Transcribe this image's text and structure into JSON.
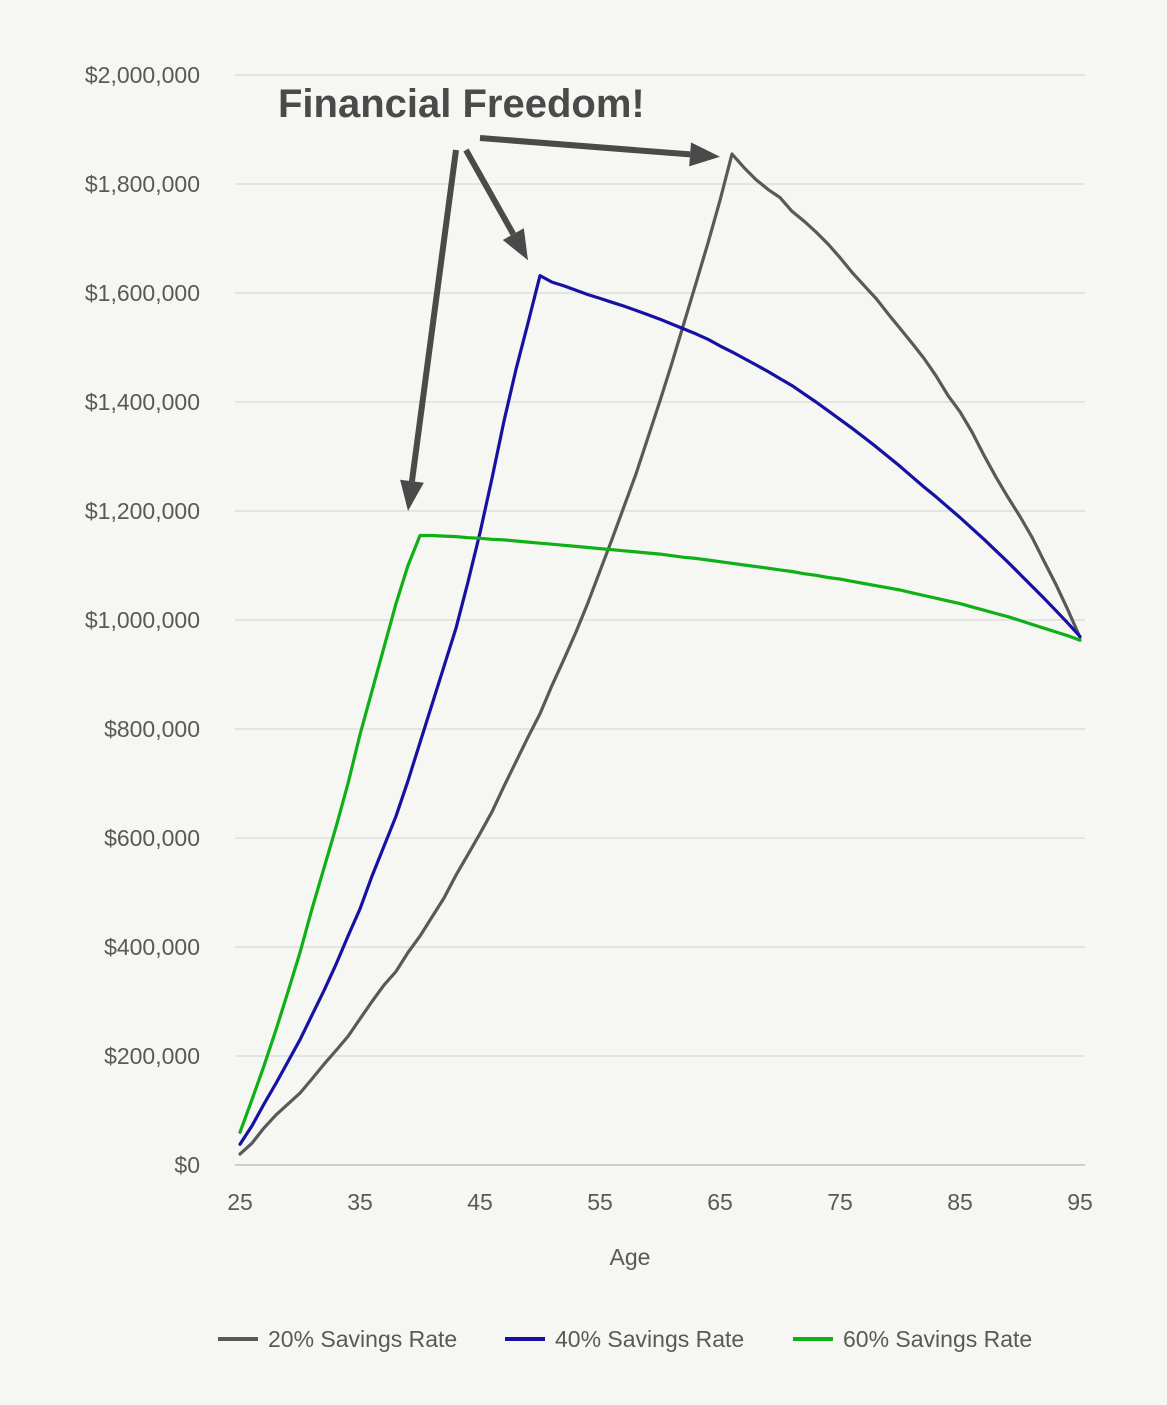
{
  "chart_data": {
    "type": "line",
    "title": "",
    "xlabel": "Age",
    "ylabel": "",
    "xlim": [
      25,
      95
    ],
    "ylim": [
      0,
      2000000
    ],
    "x_ticks": [
      25,
      35,
      45,
      55,
      65,
      75,
      85,
      95
    ],
    "x_tick_labels": [
      "25",
      "35",
      "45",
      "55",
      "65",
      "75",
      "85",
      "95"
    ],
    "y_ticks": [
      0,
      200000,
      400000,
      600000,
      800000,
      1000000,
      1200000,
      1400000,
      1600000,
      1800000,
      2000000
    ],
    "y_tick_labels": [
      "$0",
      "$200,000",
      "$400,000",
      "$600,000",
      "$800,000",
      "$1,000,000",
      "$1,200,000",
      "$1,400,000",
      "$1,600,000",
      "$1,800,000",
      "$2,000,000"
    ],
    "grid": "horizontal",
    "legend_position": "bottom",
    "annotation": {
      "text": "Financial Freedom!",
      "targets": [
        {
          "x": 39,
          "y": 1200000
        },
        {
          "x": 49,
          "y": 1660000
        },
        {
          "x": 65,
          "y": 1850000
        }
      ]
    },
    "series": [
      {
        "name": "20% Savings Rate",
        "color": "#595959",
        "points": [
          [
            25,
            20000
          ],
          [
            26,
            40000
          ],
          [
            27,
            68000
          ],
          [
            28,
            92000
          ],
          [
            29,
            112000
          ],
          [
            30,
            132000
          ],
          [
            31,
            158000
          ],
          [
            32,
            185000
          ],
          [
            33,
            210000
          ],
          [
            34,
            236000
          ],
          [
            35,
            268000
          ],
          [
            36,
            300000
          ],
          [
            37,
            330000
          ],
          [
            38,
            355000
          ],
          [
            39,
            390000
          ],
          [
            40,
            420000
          ],
          [
            41,
            455000
          ],
          [
            42,
            490000
          ],
          [
            43,
            532000
          ],
          [
            44,
            570000
          ],
          [
            45,
            608000
          ],
          [
            46,
            648000
          ],
          [
            47,
            695000
          ],
          [
            48,
            740000
          ],
          [
            49,
            785000
          ],
          [
            50,
            828000
          ],
          [
            51,
            880000
          ],
          [
            52,
            928000
          ],
          [
            53,
            978000
          ],
          [
            54,
            1032000
          ],
          [
            55,
            1090000
          ],
          [
            56,
            1148000
          ],
          [
            57,
            1208000
          ],
          [
            58,
            1268000
          ],
          [
            59,
            1335000
          ],
          [
            60,
            1402000
          ],
          [
            61,
            1472000
          ],
          [
            62,
            1545000
          ],
          [
            63,
            1618000
          ],
          [
            64,
            1692000
          ],
          [
            65,
            1770000
          ],
          [
            66,
            1855000
          ],
          [
            67,
            1830000
          ],
          [
            68,
            1808000
          ],
          [
            69,
            1790000
          ],
          [
            70,
            1775000
          ],
          [
            71,
            1750000
          ],
          [
            72,
            1732000
          ],
          [
            73,
            1712000
          ],
          [
            74,
            1690000
          ],
          [
            75,
            1665000
          ],
          [
            76,
            1638000
          ],
          [
            77,
            1614000
          ],
          [
            78,
            1590000
          ],
          [
            79,
            1562000
          ],
          [
            80,
            1535000
          ],
          [
            81,
            1508000
          ],
          [
            82,
            1480000
          ],
          [
            83,
            1448000
          ],
          [
            84,
            1412000
          ],
          [
            85,
            1382000
          ],
          [
            86,
            1345000
          ],
          [
            87,
            1302000
          ],
          [
            88,
            1262000
          ],
          [
            89,
            1225000
          ],
          [
            90,
            1190000
          ],
          [
            91,
            1152000
          ],
          [
            92,
            1108000
          ],
          [
            93,
            1065000
          ],
          [
            94,
            1018000
          ],
          [
            95,
            968000
          ]
        ]
      },
      {
        "name": "40% Savings Rate",
        "color": "#1512a3",
        "points": [
          [
            25,
            38000
          ],
          [
            26,
            72000
          ],
          [
            27,
            112000
          ],
          [
            28,
            150000
          ],
          [
            29,
            190000
          ],
          [
            30,
            230000
          ],
          [
            31,
            275000
          ],
          [
            32,
            320000
          ],
          [
            33,
            368000
          ],
          [
            34,
            420000
          ],
          [
            35,
            470000
          ],
          [
            36,
            530000
          ],
          [
            37,
            585000
          ],
          [
            38,
            640000
          ],
          [
            39,
            705000
          ],
          [
            40,
            775000
          ],
          [
            41,
            845000
          ],
          [
            42,
            915000
          ],
          [
            43,
            985000
          ],
          [
            44,
            1070000
          ],
          [
            45,
            1160000
          ],
          [
            46,
            1260000
          ],
          [
            47,
            1365000
          ],
          [
            48,
            1460000
          ],
          [
            49,
            1545000
          ],
          [
            50,
            1632000
          ],
          [
            51,
            1620000
          ],
          [
            52,
            1613000
          ],
          [
            53,
            1605000
          ],
          [
            54,
            1597000
          ],
          [
            55,
            1590000
          ],
          [
            56,
            1583000
          ],
          [
            57,
            1576000
          ],
          [
            58,
            1568000
          ],
          [
            59,
            1560000
          ],
          [
            60,
            1552000
          ],
          [
            61,
            1543000
          ],
          [
            62,
            1534000
          ],
          [
            63,
            1525000
          ],
          [
            64,
            1515000
          ],
          [
            65,
            1503000
          ],
          [
            66,
            1492000
          ],
          [
            67,
            1480000
          ],
          [
            68,
            1468000
          ],
          [
            69,
            1456000
          ],
          [
            70,
            1443000
          ],
          [
            71,
            1430000
          ],
          [
            72,
            1415000
          ],
          [
            73,
            1400000
          ],
          [
            74,
            1384000
          ],
          [
            75,
            1368000
          ],
          [
            76,
            1352000
          ],
          [
            77,
            1335000
          ],
          [
            78,
            1318000
          ],
          [
            79,
            1300000
          ],
          [
            80,
            1282000
          ],
          [
            81,
            1263000
          ],
          [
            82,
            1244000
          ],
          [
            83,
            1226000
          ],
          [
            84,
            1207000
          ],
          [
            85,
            1188000
          ],
          [
            86,
            1168000
          ],
          [
            87,
            1148000
          ],
          [
            88,
            1127000
          ],
          [
            89,
            1106000
          ],
          [
            90,
            1084000
          ],
          [
            91,
            1062000
          ],
          [
            92,
            1040000
          ],
          [
            93,
            1017000
          ],
          [
            94,
            994000
          ],
          [
            95,
            970000
          ]
        ]
      },
      {
        "name": "60% Savings Rate",
        "color": "#0faf16",
        "points": [
          [
            25,
            60000
          ],
          [
            26,
            120000
          ],
          [
            27,
            182000
          ],
          [
            28,
            248000
          ],
          [
            29,
            318000
          ],
          [
            30,
            390000
          ],
          [
            31,
            470000
          ],
          [
            32,
            545000
          ],
          [
            33,
            620000
          ],
          [
            34,
            700000
          ],
          [
            35,
            790000
          ],
          [
            36,
            870000
          ],
          [
            37,
            950000
          ],
          [
            38,
            1030000
          ],
          [
            39,
            1100000
          ],
          [
            40,
            1155000
          ],
          [
            41,
            1155000
          ],
          [
            42,
            1154000
          ],
          [
            43,
            1153000
          ],
          [
            44,
            1151000
          ],
          [
            45,
            1150000
          ],
          [
            46,
            1148000
          ],
          [
            47,
            1147000
          ],
          [
            48,
            1145000
          ],
          [
            49,
            1143000
          ],
          [
            50,
            1141000
          ],
          [
            51,
            1139000
          ],
          [
            52,
            1137000
          ],
          [
            53,
            1135000
          ],
          [
            54,
            1133000
          ],
          [
            55,
            1131000
          ],
          [
            56,
            1129000
          ],
          [
            57,
            1127000
          ],
          [
            58,
            1125000
          ],
          [
            59,
            1123000
          ],
          [
            60,
            1121000
          ],
          [
            61,
            1118000
          ],
          [
            62,
            1115000
          ],
          [
            63,
            1113000
          ],
          [
            64,
            1110000
          ],
          [
            65,
            1107000
          ],
          [
            66,
            1104000
          ],
          [
            67,
            1101000
          ],
          [
            68,
            1098000
          ],
          [
            69,
            1095000
          ],
          [
            70,
            1092000
          ],
          [
            71,
            1089000
          ],
          [
            72,
            1085000
          ],
          [
            73,
            1082000
          ],
          [
            74,
            1078000
          ],
          [
            75,
            1075000
          ],
          [
            76,
            1071000
          ],
          [
            77,
            1067000
          ],
          [
            78,
            1063000
          ],
          [
            79,
            1059000
          ],
          [
            80,
            1055000
          ],
          [
            81,
            1050000
          ],
          [
            82,
            1045000
          ],
          [
            83,
            1040000
          ],
          [
            84,
            1035000
          ],
          [
            85,
            1030000
          ],
          [
            86,
            1024000
          ],
          [
            87,
            1018000
          ],
          [
            88,
            1012000
          ],
          [
            89,
            1006000
          ],
          [
            90,
            999000
          ],
          [
            91,
            992000
          ],
          [
            92,
            985000
          ],
          [
            93,
            978000
          ],
          [
            94,
            971000
          ],
          [
            95,
            963000
          ]
        ]
      }
    ]
  }
}
